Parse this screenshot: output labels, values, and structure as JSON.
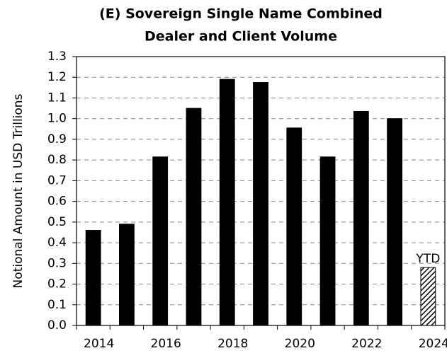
{
  "chart_data": {
    "type": "bar",
    "title": [
      "(E) Sovereign Single Name Combined",
      "Dealer and Client Volume"
    ],
    "ylabel": "Notional Amount in USD Trillions",
    "categories": [
      "2014",
      null,
      "2016",
      null,
      "2018",
      null,
      "2020",
      null,
      "2022",
      null,
      "2024"
    ],
    "values": [
      0.46,
      0.49,
      0.815,
      1.05,
      1.19,
      1.175,
      0.955,
      0.815,
      1.035,
      1.0,
      0.28
    ],
    "color": "#000000",
    "annotations": [
      {
        "text": "YTD",
        "category": "2024"
      }
    ],
    "ylim": [
      0,
      1.3
    ],
    "yticks": [
      {
        "value": 0,
        "label": "0.0"
      },
      0.1,
      0.2,
      0.3,
      0.4,
      0.5,
      0.6,
      0.7,
      0.8,
      0.9,
      {
        "value": 1,
        "label": "1.0"
      },
      1.1,
      1.2,
      1.3
    ],
    "grid": true
  }
}
